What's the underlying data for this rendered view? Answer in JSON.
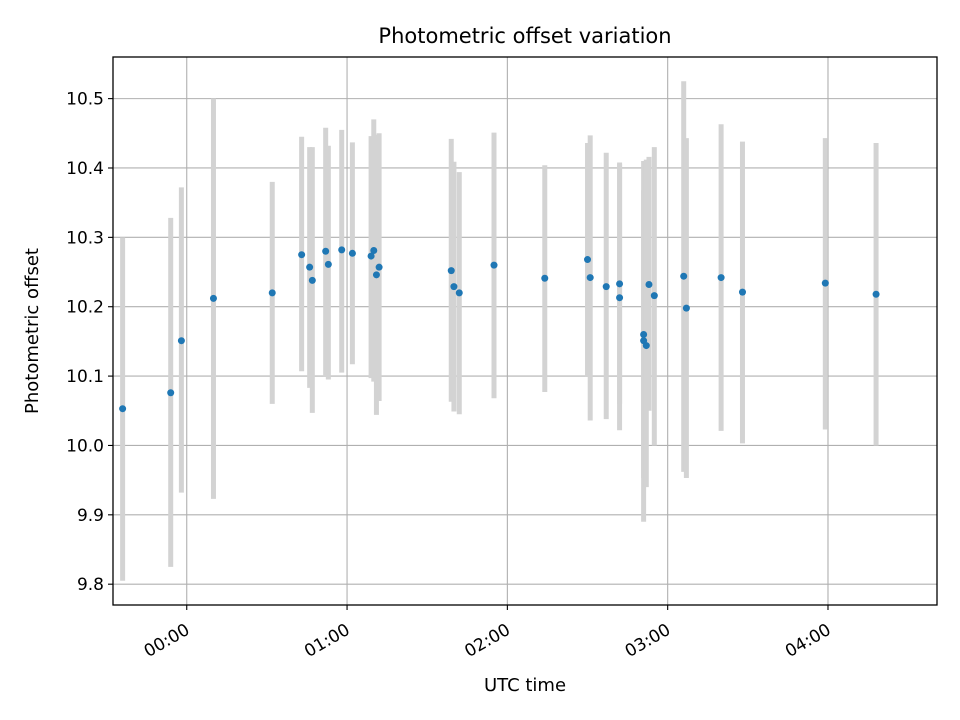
{
  "chart_data": {
    "type": "scatter",
    "title": "Photometric offset variation",
    "xlabel": "UTC time",
    "ylabel": "Photometric offset",
    "x_unit": "minutes after 00:00 UTC",
    "xlim": [
      -0.46,
      4.68
    ],
    "ylim": [
      9.77,
      10.56
    ],
    "xticks": [
      {
        "value": 0,
        "label": "00:00"
      },
      {
        "value": 1,
        "label": "01:00"
      },
      {
        "value": 2,
        "label": "02:00"
      },
      {
        "value": 3,
        "label": "03:00"
      },
      {
        "value": 4,
        "label": "04:00"
      }
    ],
    "yticks": [
      {
        "value": 9.8,
        "label": "9.8"
      },
      {
        "value": 9.9,
        "label": "9.9"
      },
      {
        "value": 10.0,
        "label": "10.0"
      },
      {
        "value": 10.1,
        "label": "10.1"
      },
      {
        "value": 10.2,
        "label": "10.2"
      },
      {
        "value": 10.3,
        "label": "10.3"
      },
      {
        "value": 10.4,
        "label": "10.4"
      },
      {
        "value": 10.5,
        "label": "10.5"
      }
    ],
    "grid": true,
    "marker_color": "#1f77b4",
    "errorbar_color": "#d3d3d3",
    "points": [
      {
        "time": "23:36",
        "y": 10.053,
        "ylow": 9.805,
        "yhigh": 10.3
      },
      {
        "time": "23:54",
        "y": 10.076,
        "ylow": 9.825,
        "yhigh": 10.328
      },
      {
        "time": "23:58",
        "y": 10.151,
        "ylow": 9.932,
        "yhigh": 10.372
      },
      {
        "time": "00:10",
        "y": 10.212,
        "ylow": 9.923,
        "yhigh": 10.5
      },
      {
        "time": "00:32",
        "y": 10.22,
        "ylow": 10.06,
        "yhigh": 10.38
      },
      {
        "time": "00:43",
        "y": 10.275,
        "ylow": 10.107,
        "yhigh": 10.445
      },
      {
        "time": "00:46",
        "y": 10.257,
        "ylow": 10.083,
        "yhigh": 10.43
      },
      {
        "time": "00:47",
        "y": 10.238,
        "ylow": 10.047,
        "yhigh": 10.43
      },
      {
        "time": "00:52",
        "y": 10.28,
        "ylow": 10.1,
        "yhigh": 10.458
      },
      {
        "time": "00:53",
        "y": 10.261,
        "ylow": 10.095,
        "yhigh": 10.432
      },
      {
        "time": "00:58",
        "y": 10.282,
        "ylow": 10.105,
        "yhigh": 10.455
      },
      {
        "time": "01:02",
        "y": 10.277,
        "ylow": 10.117,
        "yhigh": 10.437
      },
      {
        "time": "01:09",
        "y": 10.273,
        "ylow": 10.097,
        "yhigh": 10.446
      },
      {
        "time": "01:10",
        "y": 10.281,
        "ylow": 10.092,
        "yhigh": 10.47
      },
      {
        "time": "01:11",
        "y": 10.246,
        "ylow": 10.044,
        "yhigh": 10.448
      },
      {
        "time": "01:12",
        "y": 10.257,
        "ylow": 10.064,
        "yhigh": 10.45
      },
      {
        "time": "01:39",
        "y": 10.252,
        "ylow": 10.063,
        "yhigh": 10.442
      },
      {
        "time": "01:40",
        "y": 10.229,
        "ylow": 10.049,
        "yhigh": 10.409
      },
      {
        "time": "01:42",
        "y": 10.22,
        "ylow": 10.045,
        "yhigh": 10.394
      },
      {
        "time": "01:55",
        "y": 10.26,
        "ylow": 10.068,
        "yhigh": 10.451
      },
      {
        "time": "02:14",
        "y": 10.241,
        "ylow": 10.077,
        "yhigh": 10.404
      },
      {
        "time": "02:30",
        "y": 10.268,
        "ylow": 10.1,
        "yhigh": 10.436
      },
      {
        "time": "02:31",
        "y": 10.242,
        "ylow": 10.036,
        "yhigh": 10.447
      },
      {
        "time": "02:37",
        "y": 10.229,
        "ylow": 10.038,
        "yhigh": 10.422
      },
      {
        "time": "02:42",
        "y": 10.233,
        "ylow": 10.06,
        "yhigh": 10.408
      },
      {
        "time": "02:42",
        "y": 10.213,
        "ylow": 10.022,
        "yhigh": 10.406
      },
      {
        "time": "02:51",
        "y": 10.16,
        "ylow": 9.953,
        "yhigh": 10.368
      },
      {
        "time": "02:51",
        "y": 10.151,
        "ylow": 9.89,
        "yhigh": 10.41
      },
      {
        "time": "02:52",
        "y": 10.144,
        "ylow": 9.94,
        "yhigh": 10.412
      },
      {
        "time": "02:53",
        "y": 10.232,
        "ylow": 10.05,
        "yhigh": 10.416
      },
      {
        "time": "02:55",
        "y": 10.216,
        "ylow": 10.0,
        "yhigh": 10.43
      },
      {
        "time": "03:06",
        "y": 10.244,
        "ylow": 9.962,
        "yhigh": 10.525
      },
      {
        "time": "03:07",
        "y": 10.198,
        "ylow": 9.953,
        "yhigh": 10.443
      },
      {
        "time": "03:20",
        "y": 10.242,
        "ylow": 10.021,
        "yhigh": 10.463
      },
      {
        "time": "03:28",
        "y": 10.221,
        "ylow": 10.003,
        "yhigh": 10.438
      },
      {
        "time": "03:59",
        "y": 10.234,
        "ylow": 10.023,
        "yhigh": 10.443
      },
      {
        "time": "04:18",
        "y": 10.218,
        "ylow": 10.0,
        "yhigh": 10.436
      }
    ]
  }
}
